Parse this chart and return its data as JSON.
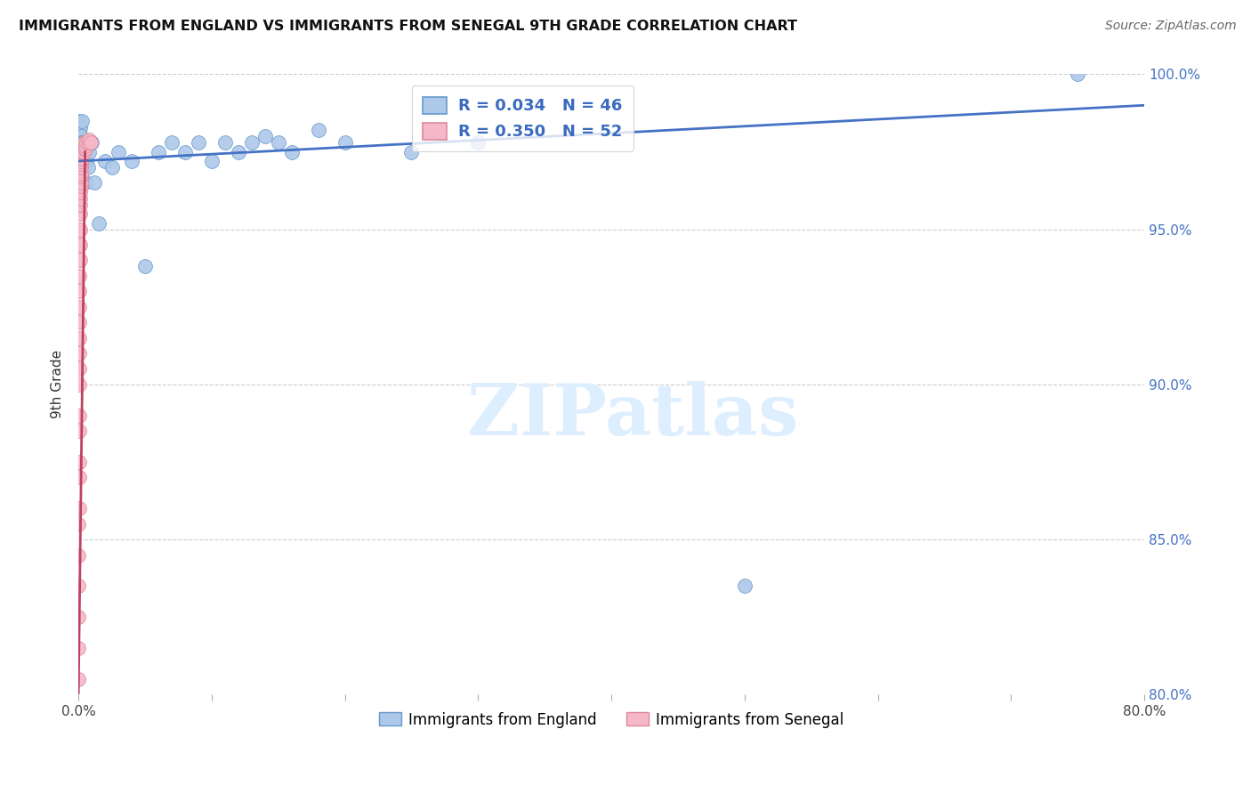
{
  "title": "IMMIGRANTS FROM ENGLAND VS IMMIGRANTS FROM SENEGAL 9TH GRADE CORRELATION CHART",
  "source": "Source: ZipAtlas.com",
  "ylabel": "9th Grade",
  "xlim": [
    0.0,
    80.0
  ],
  "ylim": [
    80.0,
    100.0
  ],
  "xtick_vals": [
    0.0,
    10.0,
    20.0,
    30.0,
    40.0,
    50.0,
    60.0,
    70.0,
    80.0
  ],
  "xtick_labels": [
    "0.0%",
    "",
    "",
    "",
    "",
    "",
    "",
    "",
    "80.0%"
  ],
  "ytick_vals": [
    80.0,
    85.0,
    90.0,
    95.0,
    100.0
  ],
  "england_dot_color": "#adc8e8",
  "england_edge_color": "#6699cc",
  "england_line_color": "#4472c4",
  "senegal_dot_color": "#f5b8c8",
  "senegal_edge_color": "#dd8899",
  "senegal_line_color": "#c04060",
  "watermark_text": "ZIPatlas",
  "watermark_color": "#ddeeff",
  "england_R": 0.034,
  "england_N": 46,
  "senegal_R": 0.35,
  "senegal_N": 52,
  "england_x": [
    0.02,
    0.04,
    0.06,
    0.08,
    0.1,
    0.12,
    0.14,
    0.16,
    0.18,
    0.2,
    0.22,
    0.25,
    0.28,
    0.3,
    0.35,
    0.4,
    0.45,
    0.5,
    0.6,
    0.7,
    0.8,
    1.0,
    1.2,
    1.5,
    2.0,
    2.5,
    3.0,
    4.0,
    5.0,
    6.0,
    7.0,
    8.0,
    9.0,
    10.0,
    11.0,
    12.0,
    13.0,
    14.0,
    15.0,
    16.0,
    18.0,
    20.0,
    25.0,
    30.0,
    50.0,
    75.0
  ],
  "england_y": [
    98.5,
    98.2,
    97.8,
    98.0,
    97.5,
    98.3,
    97.0,
    97.8,
    97.5,
    98.0,
    97.2,
    97.8,
    98.5,
    97.5,
    97.0,
    97.8,
    97.5,
    96.5,
    97.2,
    97.0,
    97.5,
    97.8,
    96.5,
    95.2,
    97.2,
    97.0,
    97.5,
    97.2,
    93.8,
    97.5,
    97.8,
    97.5,
    97.8,
    97.2,
    97.8,
    97.5,
    97.8,
    98.0,
    97.8,
    97.5,
    98.2,
    97.8,
    97.5,
    97.8,
    83.5,
    100.0
  ],
  "senegal_x": [
    0.01,
    0.01,
    0.01,
    0.01,
    0.02,
    0.02,
    0.03,
    0.03,
    0.04,
    0.04,
    0.05,
    0.05,
    0.06,
    0.07,
    0.07,
    0.08,
    0.08,
    0.09,
    0.09,
    0.1,
    0.11,
    0.11,
    0.12,
    0.13,
    0.14,
    0.15,
    0.16,
    0.17,
    0.18,
    0.19,
    0.2,
    0.21,
    0.22,
    0.23,
    0.24,
    0.25,
    0.26,
    0.27,
    0.28,
    0.3,
    0.32,
    0.34,
    0.36,
    0.38,
    0.4,
    0.45,
    0.5,
    0.55,
    0.6,
    0.7,
    0.8,
    0.9
  ],
  "senegal_y": [
    80.5,
    81.5,
    82.5,
    83.5,
    84.5,
    85.5,
    86.0,
    87.0,
    87.5,
    88.5,
    89.0,
    90.0,
    90.5,
    91.0,
    91.5,
    92.0,
    92.5,
    93.0,
    93.5,
    94.0,
    94.5,
    95.0,
    95.5,
    95.8,
    96.0,
    96.2,
    96.4,
    96.5,
    96.7,
    96.8,
    97.0,
    97.1,
    97.2,
    97.3,
    97.4,
    97.5,
    97.3,
    97.5,
    97.6,
    97.5,
    97.6,
    97.7,
    97.5,
    97.6,
    97.7,
    97.8,
    97.6,
    97.7,
    97.8,
    97.8,
    97.9,
    97.8
  ],
  "eng_line_x0": 0.0,
  "eng_line_y0": 97.2,
  "eng_line_x1": 80.0,
  "eng_line_y1": 99.0,
  "sen_line_x0": 0.0,
  "sen_line_y0": 80.0,
  "sen_line_x1": 0.5,
  "sen_line_y1": 97.5
}
